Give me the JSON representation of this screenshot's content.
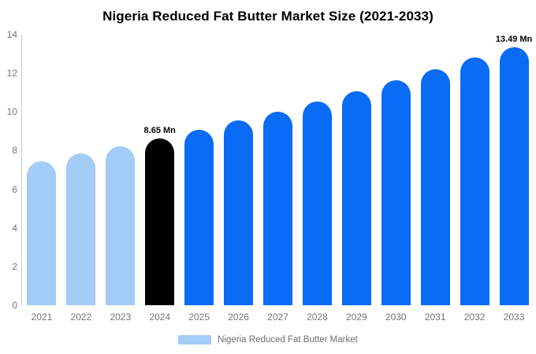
{
  "chart_data": {
    "type": "bar",
    "title": "Nigeria Reduced Fat Butter Market Size (2021-2033)",
    "unit": "Mn",
    "categories": [
      "2021",
      "2022",
      "2023",
      "2024",
      "2025",
      "2026",
      "2027",
      "2028",
      "2029",
      "2030",
      "2031",
      "2032",
      "2033"
    ],
    "values": [
      7.46,
      7.84,
      8.23,
      8.65,
      9.09,
      9.55,
      10.03,
      10.54,
      11.07,
      11.63,
      12.22,
      12.84,
      13.49
    ],
    "bar_labels": [
      "",
      "",
      "",
      "8.65 Mn",
      "",
      "",
      "",
      "",
      "",
      "",
      "",
      "",
      "13.49 Mn"
    ],
    "bar_colors": [
      "#A3CCF7",
      "#A3CCF7",
      "#A3CCF7",
      "#000000",
      "#0A6BF5",
      "#0A6BF5",
      "#0A6BF5",
      "#0A6BF5",
      "#0A6BF5",
      "#0A6BF5",
      "#0A6BF5",
      "#0A6BF5",
      "#0A6BF5"
    ],
    "xlabel": "",
    "ylabel": "",
    "ylim": [
      0,
      14
    ],
    "yticks": [
      0,
      2,
      4,
      6,
      8,
      10,
      12,
      14
    ],
    "grid": false,
    "legend": {
      "position": "bottom",
      "items": [
        {
          "label": "Nigeria Reduced Fat Butter Market",
          "color": "#A3CCF7"
        }
      ]
    }
  },
  "colors": {
    "historical_bar": "#A3CCF7",
    "highlight_bar": "#000000",
    "forecast_bar": "#0A6BF5",
    "axis_line": "#cccccc",
    "tick_text": "#757575",
    "legend_text": "#6e6e6e",
    "background": "#ffffff"
  }
}
